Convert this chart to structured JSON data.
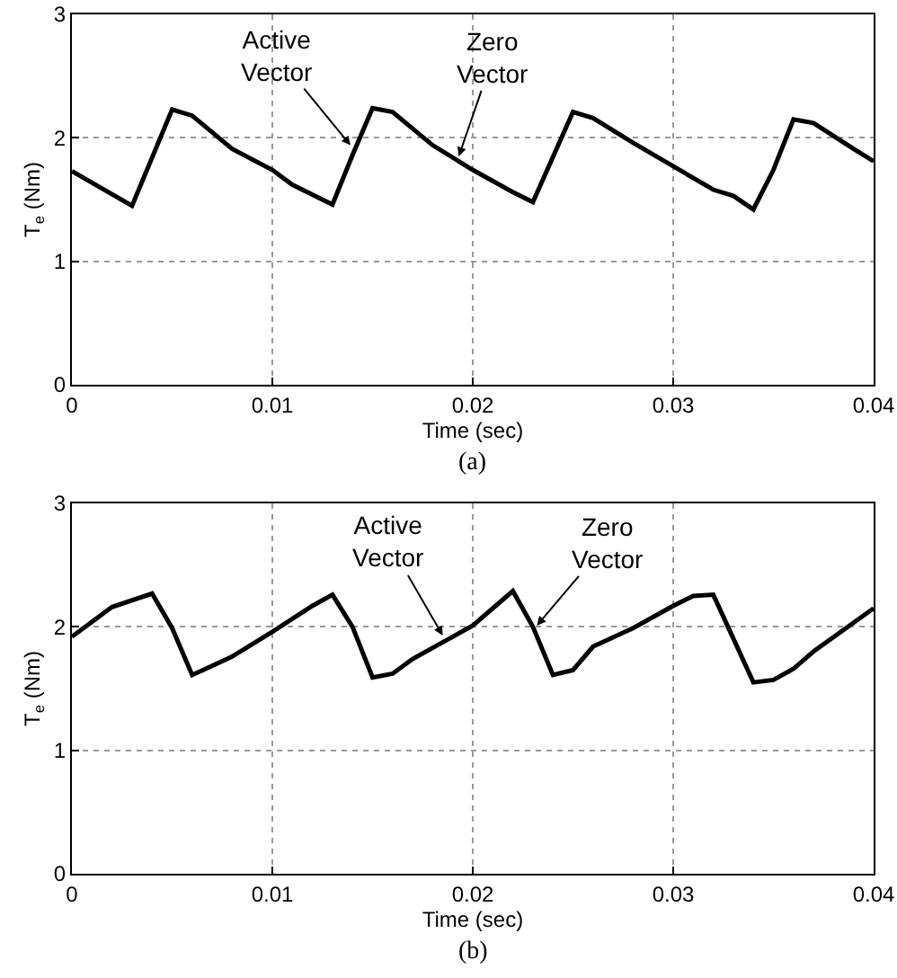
{
  "chart_data": [
    {
      "type": "line",
      "xlabel": "Time (sec)",
      "ylabel": "T$_{e}$ (Nm)",
      "xlim": [
        0,
        0.04
      ],
      "xticks": [
        0,
        0.01,
        0.02,
        0.03,
        0.04
      ],
      "ylim": [
        0,
        3
      ],
      "yticks": [
        0,
        1,
        2,
        3
      ],
      "grid": true,
      "line_style": "solid",
      "annotations": [
        {
          "text": "Active\nVector",
          "x": 0.0139,
          "y": 1.94
        },
        {
          "text": "Zero\nVector",
          "x": 0.0193,
          "y": 1.85
        },
        "(a)"
      ],
      "series": [
        {
          "color": "#000000",
          "x": [
            0,
            0.003,
            0.005,
            0.006,
            0.008,
            0.01,
            0.011,
            0.013,
            0.014,
            0.015,
            0.016,
            0.018,
            0.02,
            0.022,
            0.023,
            0.025,
            0.026,
            0.028,
            0.03,
            0.032,
            0.033,
            0.034,
            0.035,
            0.036,
            0.037,
            0.039,
            0.04
          ],
          "values": [
            1.73,
            1.45,
            2.23,
            2.18,
            1.91,
            1.74,
            1.62,
            1.46,
            1.86,
            2.24,
            2.21,
            1.94,
            1.74,
            1.56,
            1.48,
            2.21,
            2.16,
            1.96,
            1.77,
            1.58,
            1.53,
            1.42,
            1.74,
            2.15,
            2.12,
            1.91,
            1.81
          ]
        }
      ]
    },
    {
      "type": "line",
      "xlabel": "Time (sec)",
      "ylabel": "T$_{e}$ (Nm)",
      "xlim": [
        0,
        0.04
      ],
      "xticks": [
        0,
        0.01,
        0.02,
        0.03,
        0.04
      ],
      "ylim": [
        0,
        3
      ],
      "yticks": [
        0,
        1,
        2,
        3
      ],
      "grid": true,
      "line_style": "solid",
      "annotations": [
        {
          "text": "Active\nVector",
          "x": 0.0185,
          "y": 1.93
        },
        {
          "text": "Zero\nVector",
          "x": 0.0232,
          "y": 2.01
        },
        "(b)"
      ],
      "series": [
        {
          "color": "#000000",
          "x": [
            0,
            0.001,
            0.002,
            0.004,
            0.005,
            0.006,
            0.008,
            0.01,
            0.012,
            0.013,
            0.014,
            0.015,
            0.016,
            0.017,
            0.019,
            0.02,
            0.022,
            0.023,
            0.024,
            0.025,
            0.026,
            0.028,
            0.03,
            0.031,
            0.032,
            0.034,
            0.035,
            0.036,
            0.037,
            0.04
          ],
          "values": [
            1.92,
            2.04,
            2.16,
            2.27,
            1.99,
            1.61,
            1.76,
            1.96,
            2.17,
            2.26,
            2.0,
            1.59,
            1.62,
            1.74,
            1.92,
            2.01,
            2.29,
            2.0,
            1.61,
            1.65,
            1.84,
            1.99,
            2.17,
            2.25,
            2.26,
            1.55,
            1.57,
            1.66,
            1.8,
            2.15
          ]
        }
      ]
    }
  ]
}
